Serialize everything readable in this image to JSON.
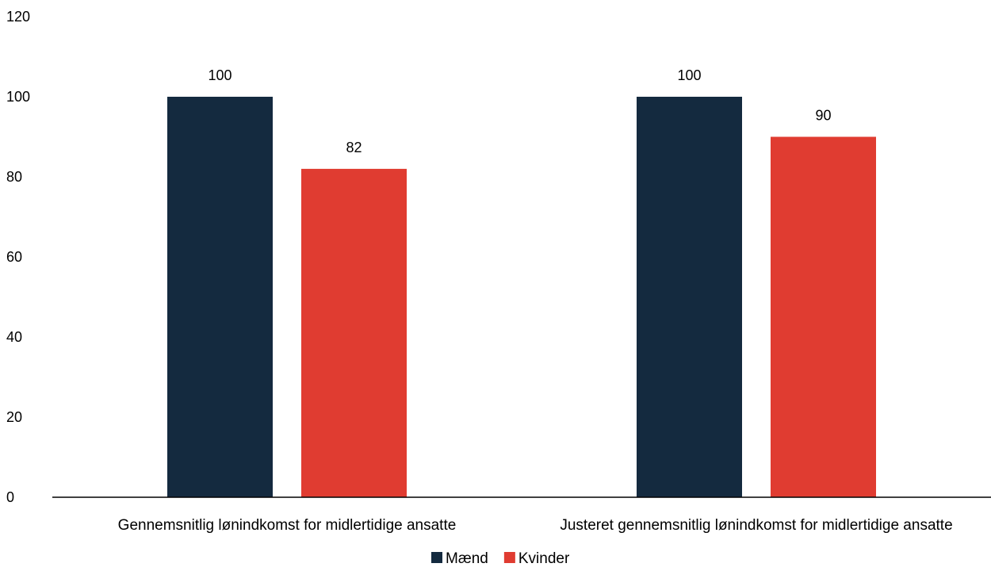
{
  "chart_data": {
    "type": "bar",
    "title": "",
    "xlabel": "",
    "ylabel": "",
    "categories": [
      "Gennemsnitlig lønindkomst for midlertidige ansatte",
      "Justeret gennemsnitlig lønindkomst for midlertidige ansatte"
    ],
    "series": [
      {
        "name": "Mænd",
        "color": "#142a3f",
        "values": [
          100,
          100
        ],
        "labels": [
          "100",
          "100"
        ]
      },
      {
        "name": "Kvinder",
        "color": "#e03c31",
        "values": [
          82,
          90
        ],
        "labels": [
          "82",
          "90"
        ]
      }
    ],
    "ylim": [
      0,
      120
    ],
    "yticks": [
      0,
      20,
      40,
      60,
      80,
      100,
      120
    ],
    "grid": false,
    "legend_position": "bottom-center"
  }
}
